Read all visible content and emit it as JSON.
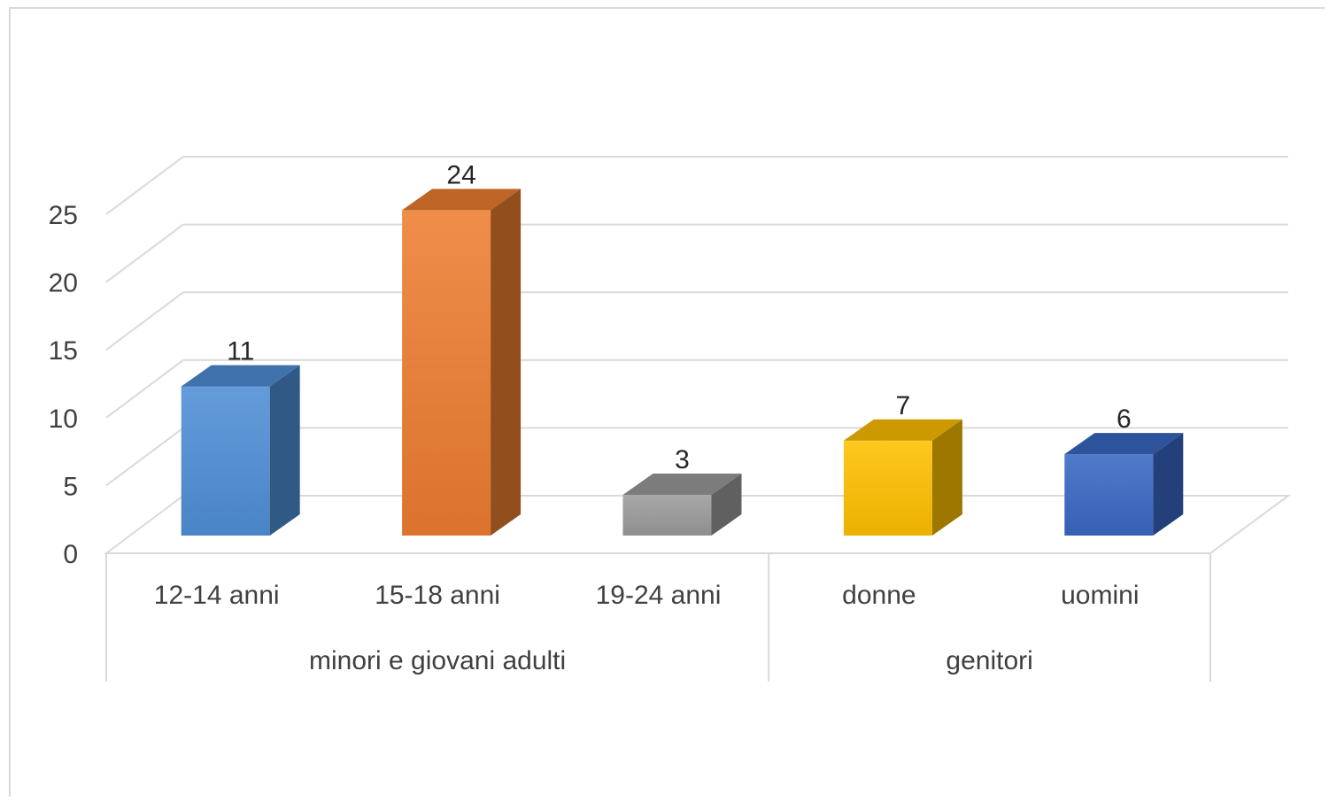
{
  "chart_data": {
    "type": "bar",
    "title": "",
    "xlabel": "",
    "ylabel": "",
    "ylim": [
      0,
      25
    ],
    "yticks": [
      "0",
      "5",
      "10",
      "15",
      "20",
      "25"
    ],
    "grid": true,
    "legend": "none",
    "style": "3d-column",
    "categories": [
      "12-14 anni",
      "15-18 anni",
      "19-24 anni",
      "donne",
      "uomini"
    ],
    "values": [
      11,
      24,
      3,
      7,
      6
    ],
    "data_labels": [
      "11",
      "24",
      "3",
      "7",
      "6"
    ],
    "groups": [
      {
        "label": "minori e giovani adulti",
        "categories": [
          "12-14 anni",
          "15-18 anni",
          "19-24 anni"
        ]
      },
      {
        "label": "genitori",
        "categories": [
          "donne",
          "uomini"
        ]
      }
    ],
    "colors": [
      "#4f8fd6",
      "#ed7d31",
      "#9b9b9b",
      "#ffc000",
      "#3a68c4"
    ]
  }
}
